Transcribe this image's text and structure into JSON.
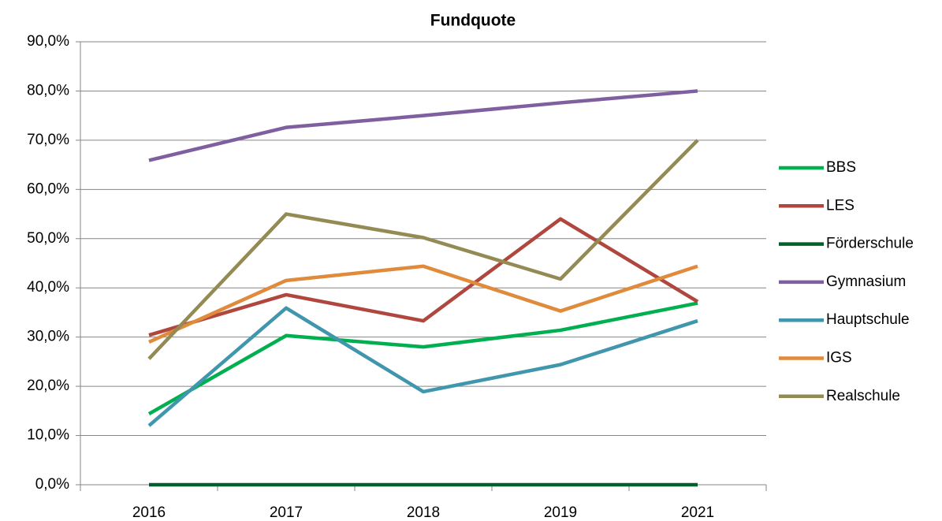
{
  "chart_data": {
    "type": "line",
    "title": "Fundquote",
    "categories": [
      "2016",
      "2017",
      "2018",
      "2019",
      "2021"
    ],
    "series": [
      {
        "name": "BBS",
        "color": "#00b050",
        "values": [
          14.4,
          30.3,
          28.0,
          31.4,
          36.9
        ]
      },
      {
        "name": "LES",
        "color": "#b0473f",
        "values": [
          30.4,
          38.6,
          33.3,
          54.0,
          37.2
        ]
      },
      {
        "name": "Förderschule",
        "color": "#00602b",
        "values": [
          0,
          0,
          0,
          0,
          0
        ]
      },
      {
        "name": "Gymnasium",
        "color": "#7f5f9f",
        "values": [
          65.9,
          72.6,
          75.0,
          77.6,
          80.0
        ]
      },
      {
        "name": "Hauptschule",
        "color": "#4096ad",
        "values": [
          12.0,
          35.9,
          18.9,
          24.4,
          33.3
        ]
      },
      {
        "name": "IGS",
        "color": "#e08a3c",
        "values": [
          29.0,
          41.5,
          44.4,
          35.3,
          44.4
        ]
      },
      {
        "name": "Realschule",
        "color": "#948a54",
        "values": [
          25.6,
          55.0,
          50.2,
          41.8,
          70.0
        ]
      }
    ],
    "ylim": [
      0,
      90
    ],
    "yticks": [
      {
        "value": 0,
        "label": "0,0%"
      },
      {
        "value": 10,
        "label": "10,0%"
      },
      {
        "value": 20,
        "label": "20,0%"
      },
      {
        "value": 30,
        "label": "30,0%"
      },
      {
        "value": 40,
        "label": "40,0%"
      },
      {
        "value": 50,
        "label": "50,0%"
      },
      {
        "value": 60,
        "label": "60,0%"
      },
      {
        "value": 70,
        "label": "70,0%"
      },
      {
        "value": 80,
        "label": "80,0%"
      },
      {
        "value": 90,
        "label": "90,0%"
      }
    ],
    "grid": true,
    "legend": "right"
  }
}
